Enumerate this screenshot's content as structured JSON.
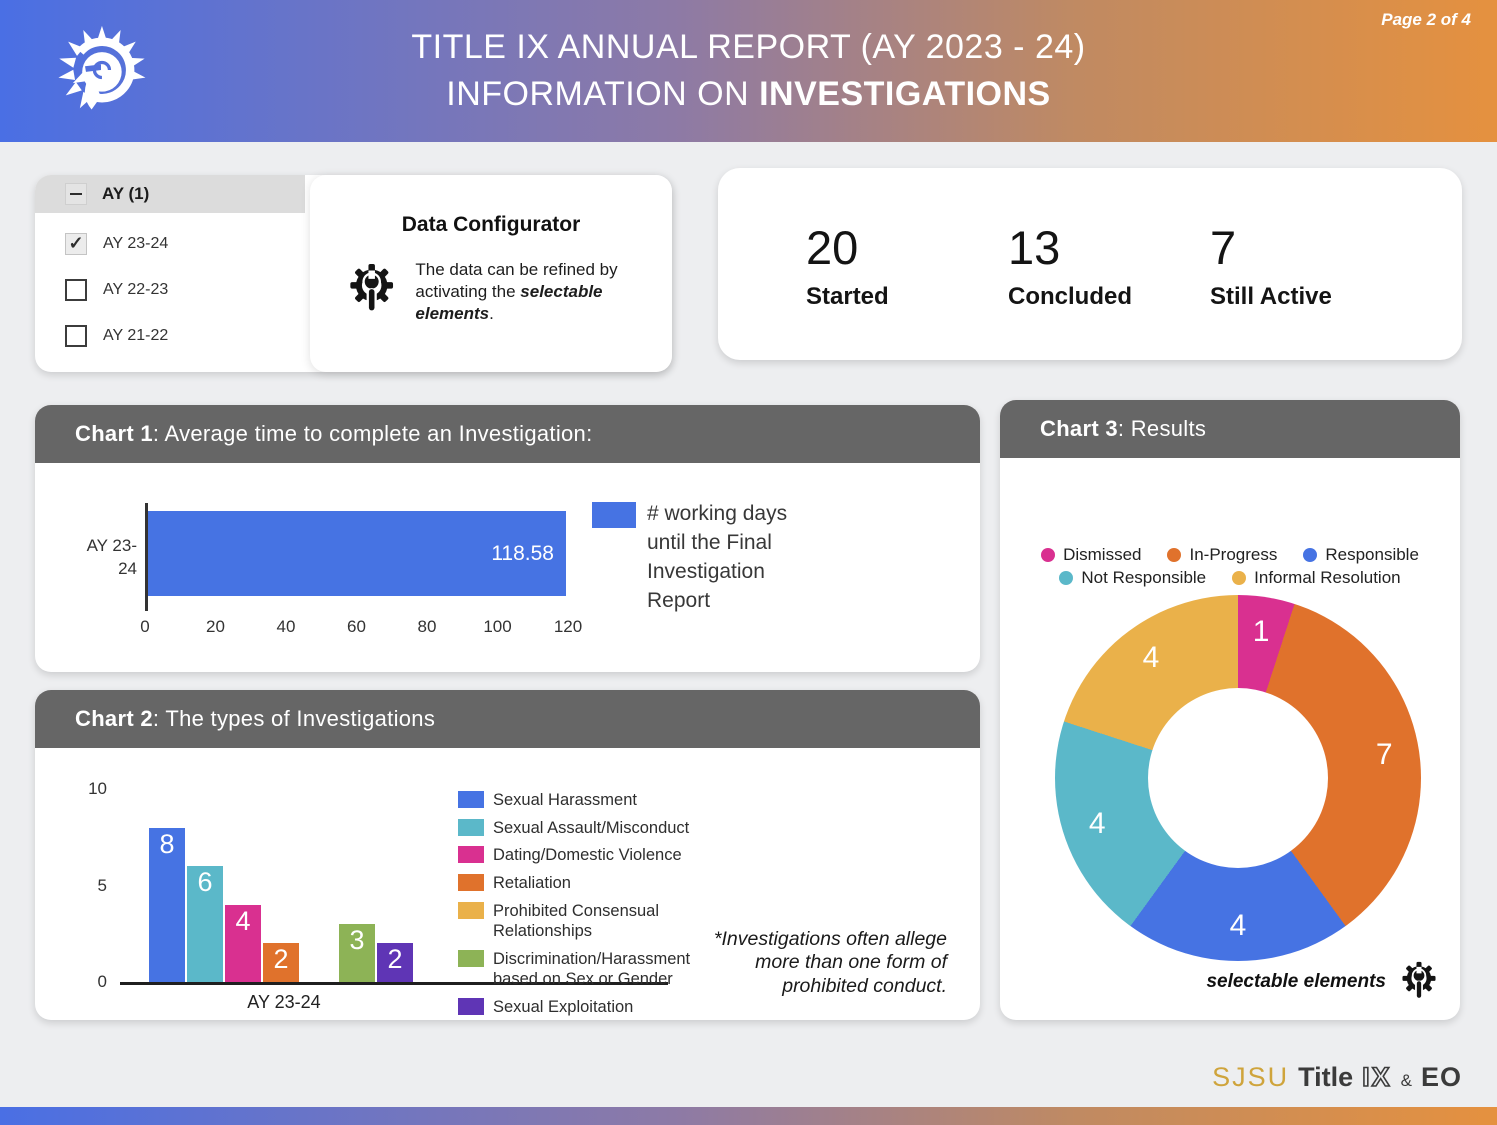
{
  "page": {
    "page_indicator": "Page 2 of 4",
    "title_line1": "TITLE IX ANNUAL REPORT (AY 2023 - 24)",
    "title_line2_prefix": "INFORMATION ON ",
    "title_line2_bold": "INVESTIGATIONS"
  },
  "configurator": {
    "group_label": "AY (1)",
    "options": [
      {
        "label": "AY 23-24",
        "checked": true
      },
      {
        "label": "AY 22-23",
        "checked": false
      },
      {
        "label": "AY 21-22",
        "checked": false
      }
    ],
    "title": "Data Configurator",
    "icon": "gear-wrench-icon",
    "description_prefix": "The data can be refined by activating the ",
    "description_bold": "selectable elements",
    "description_suffix": "."
  },
  "stats": [
    {
      "value": "20",
      "label": "Started"
    },
    {
      "value": "13",
      "label": "Concluded"
    },
    {
      "value": "7",
      "label": "Still Active"
    }
  ],
  "colors": {
    "header_gradient": [
      "#4a6fe4",
      "#8d7aa6",
      "#e5913f"
    ],
    "chart_header_gray": "#666666",
    "blue": "#4673e3",
    "teal": "#5bb8c9",
    "magenta": "#d93090",
    "orange": "#e0722c",
    "gold": "#eab14a",
    "green": "#8db356",
    "purple": "#5f35b5",
    "brand_gold": "#cfa43c"
  },
  "chart_data": [
    {
      "id": "chart1",
      "type": "bar",
      "orientation": "horizontal",
      "title_bold": "Chart 1",
      "title_rest": ": Average time to complete an Investigation:",
      "categories": [
        "AY 23-24"
      ],
      "values": [
        118.58
      ],
      "value_labels": [
        "118.58"
      ],
      "bar_color": "#4673e3",
      "xlim": [
        0,
        120
      ],
      "xticks": [
        0,
        20,
        40,
        60,
        80,
        100,
        120
      ],
      "legend": [
        "# working days until the Final Investigation Report"
      ],
      "legend_position": "right"
    },
    {
      "id": "chart2",
      "type": "bar",
      "orientation": "vertical",
      "title_bold": "Chart 2",
      "title_rest": ": The types of Investigations",
      "categories": [
        "Sexual Harassment",
        "Sexual Assault/Misconduct",
        "Dating/Domestic Violence",
        "Retaliation",
        "Prohibited Consensual Relationships",
        "Discrimination/Harassment based on Sex or Gender",
        "Sexual Exploitation"
      ],
      "values": [
        8,
        6,
        4,
        2,
        0,
        3,
        2
      ],
      "colors": [
        "#4673e3",
        "#5bb8c9",
        "#d93090",
        "#e0722c",
        "#eab14a",
        "#8db356",
        "#5f35b5"
      ],
      "x_group_label": "AY 23-24",
      "ylim": [
        0,
        10
      ],
      "yticks": [
        0,
        5,
        10
      ],
      "legend_position": "right",
      "note": "*Investigations often allege more than one form of prohibited conduct."
    },
    {
      "id": "chart3",
      "type": "pie",
      "subtype": "donut",
      "title_bold": "Chart 3",
      "title_rest": ": Results",
      "segments": [
        {
          "label": "Dismissed",
          "value": 1,
          "color": "#d93090"
        },
        {
          "label": "In-Progress",
          "value": 7,
          "color": "#e0722c"
        },
        {
          "label": "Responsible",
          "value": 4,
          "color": "#4673e3"
        },
        {
          "label": "Not Responsible",
          "value": 4,
          "color": "#5bb8c9"
        },
        {
          "label": "Informal Resolution",
          "value": 4,
          "color": "#eab14a"
        }
      ],
      "total": 20,
      "legend_position": "top",
      "footnote": "selectable elements",
      "footnote_icon": "gear-wrench-icon"
    }
  ],
  "footer": {
    "brand_sjsu": "SJSU",
    "brand_title": "Title",
    "brand_ix": "IX",
    "brand_amp": "&",
    "brand_eo": "EO"
  }
}
